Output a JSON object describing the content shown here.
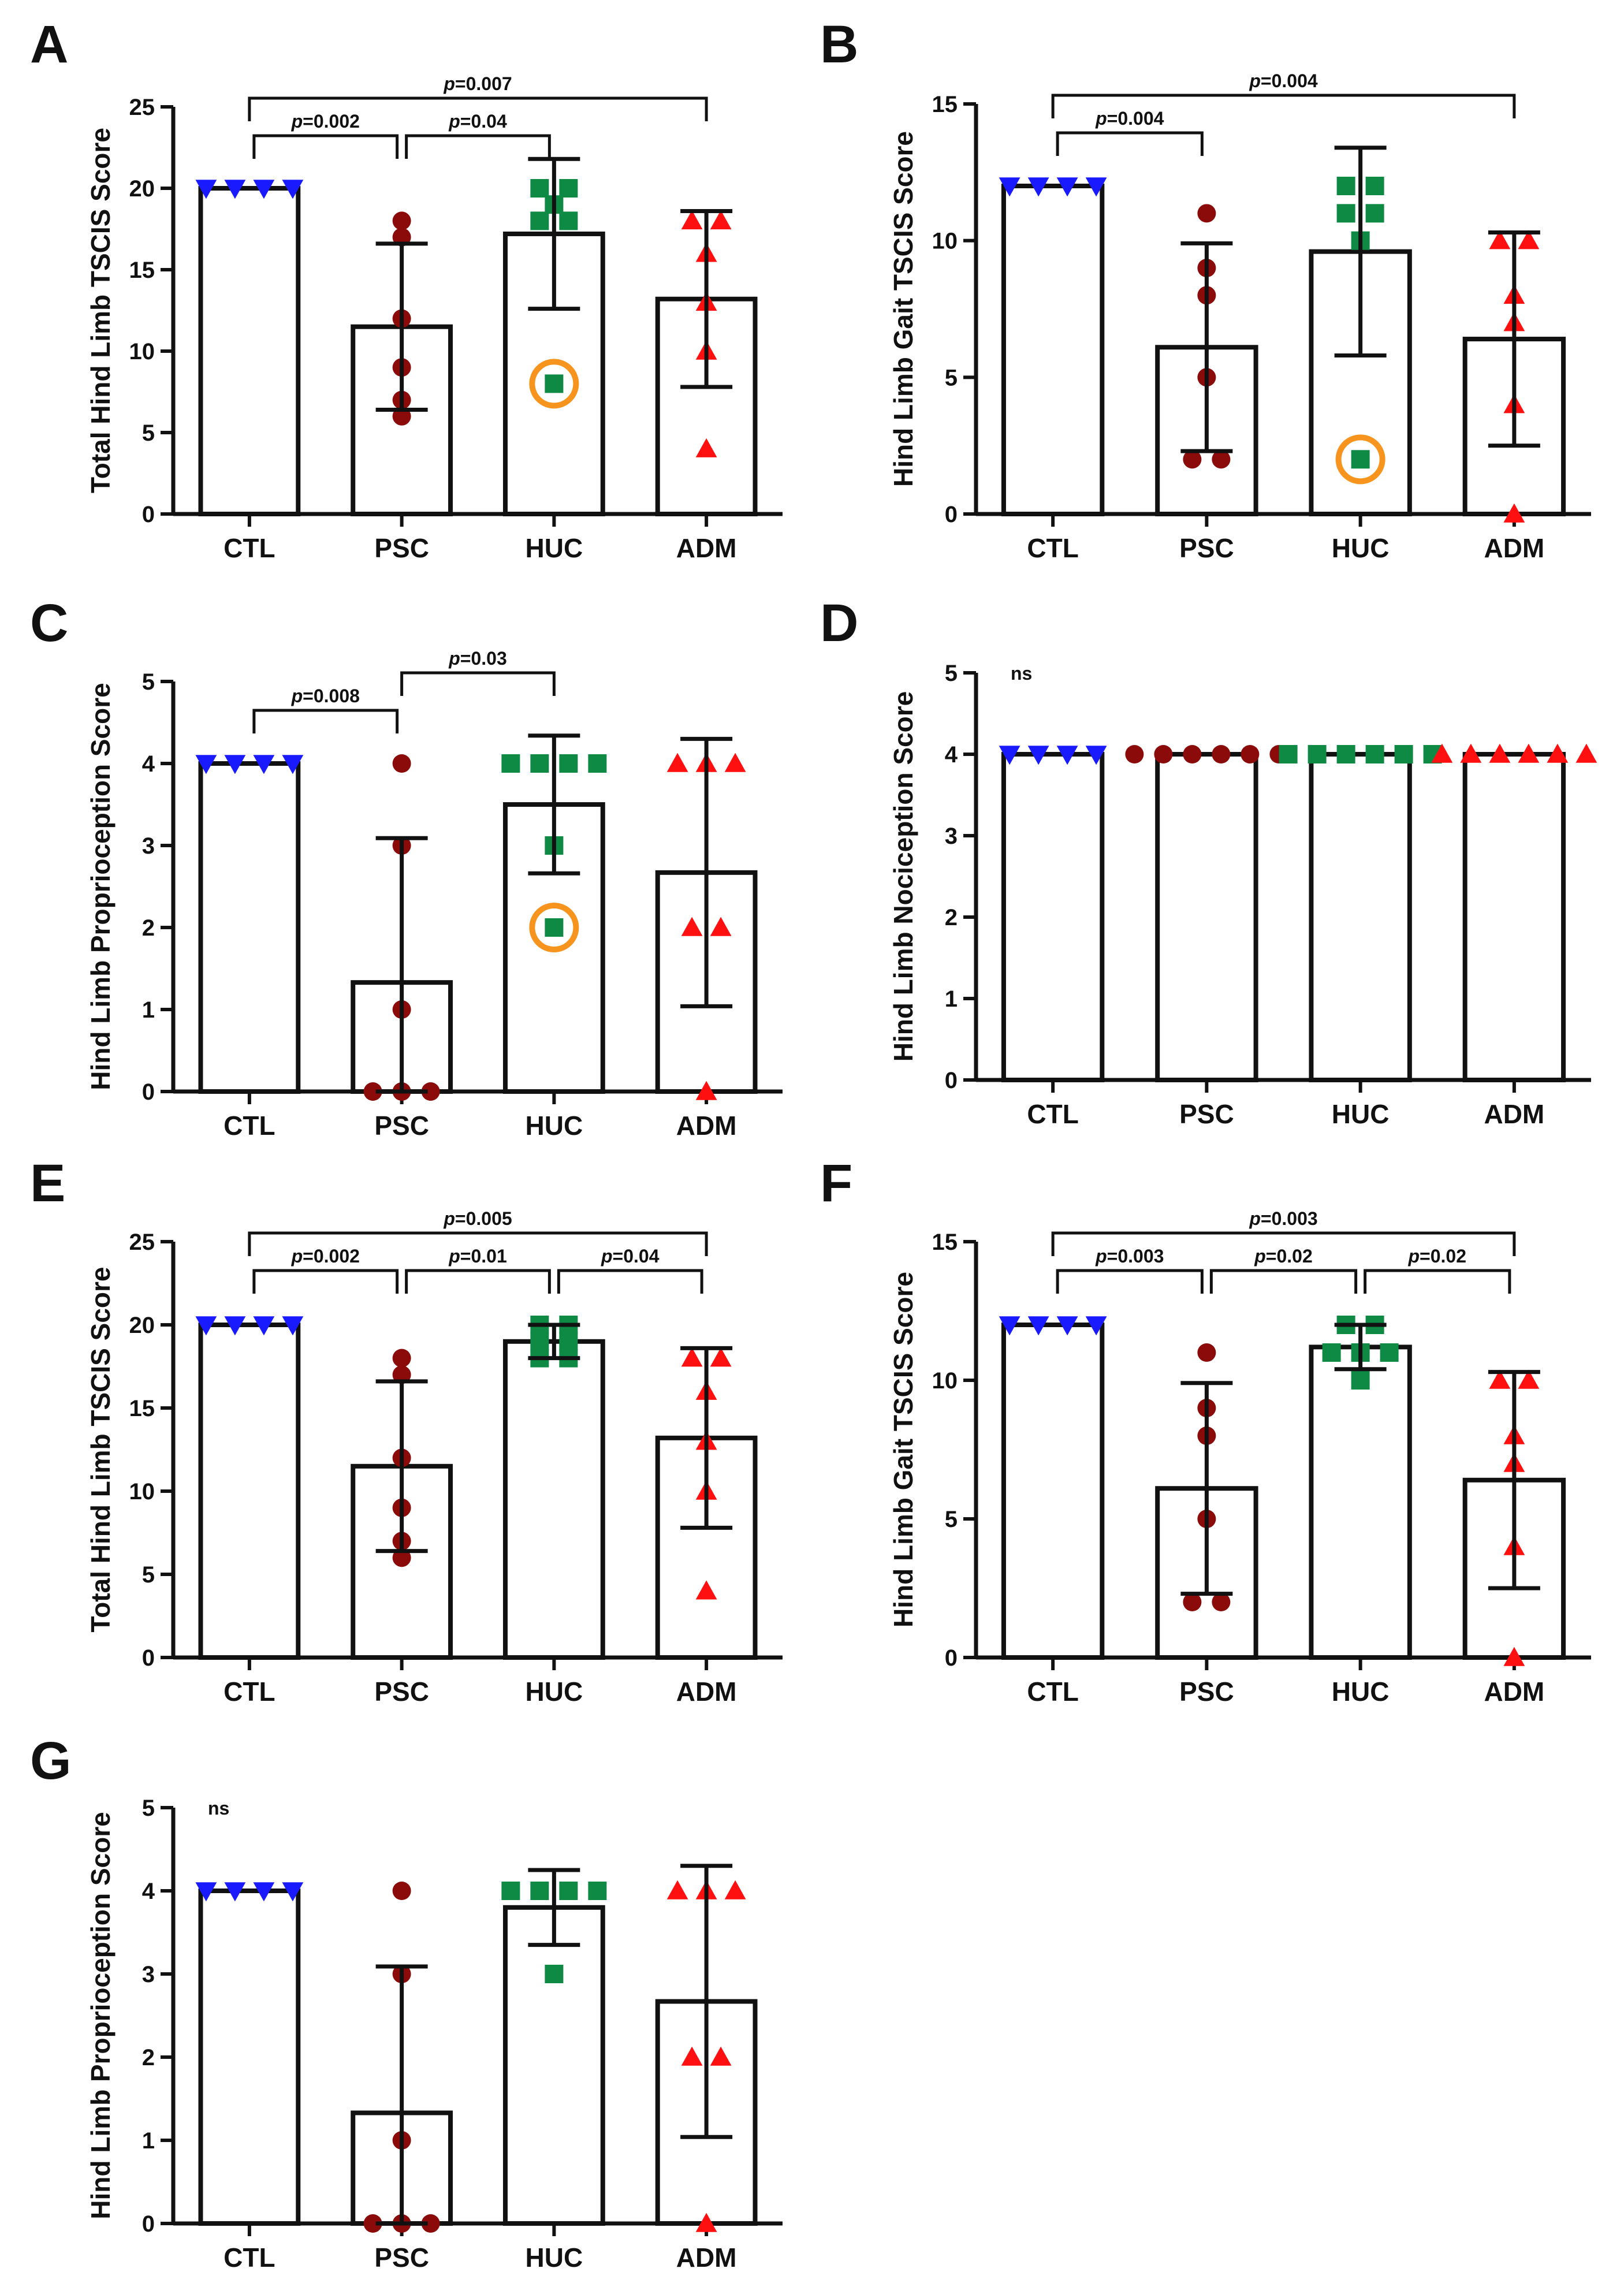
{
  "colors": {
    "CTL": "#1a1aff",
    "PSC": "#8b0a0a",
    "HUC": "#0f8a45",
    "ADM": "#ff1010",
    "highlight": "#f7941d",
    "axis": "#111111"
  },
  "chart_data": [
    {
      "panel": "A",
      "type": "bar",
      "ylabel": "Total Hind Limb TSCIS Score",
      "ylim": [
        0,
        25
      ],
      "yticks": [
        0,
        5,
        10,
        15,
        20,
        25
      ],
      "categories": [
        "CTL",
        "PSC",
        "HUC",
        "ADM"
      ],
      "bars": [
        {
          "name": "CTL",
          "mean": 20,
          "sd": 0,
          "points": [
            20,
            20,
            20,
            20
          ],
          "marker": "triangle-down"
        },
        {
          "name": "PSC",
          "mean": 11.5,
          "sd": 5.1,
          "points": [
            17,
            18,
            12,
            9,
            6,
            7
          ],
          "marker": "circle"
        },
        {
          "name": "HUC",
          "mean": 17.2,
          "sd": 4.6,
          "points": [
            20,
            19,
            20,
            18,
            18,
            8
          ],
          "marker": "square",
          "highlight": 8
        },
        {
          "name": "ADM",
          "mean": 13.2,
          "sd": 5.4,
          "points": [
            18,
            18,
            16,
            13,
            10,
            4
          ],
          "marker": "triangle-up"
        }
      ],
      "comparisons": [
        {
          "from": "CTL",
          "to": "PSC",
          "label": "p=0.002",
          "level": 0
        },
        {
          "from": "PSC",
          "to": "HUC",
          "label": "p=0.04",
          "level": 0
        },
        {
          "from": "CTL",
          "to": "ADM",
          "label": "p=0.007",
          "level": 1
        }
      ]
    },
    {
      "panel": "B",
      "type": "bar",
      "ylabel": "Hind Limb Gait TSCIS Score",
      "ylim": [
        0,
        15
      ],
      "yticks": [
        0,
        5,
        10,
        15
      ],
      "categories": [
        "CTL",
        "PSC",
        "HUC",
        "ADM"
      ],
      "bars": [
        {
          "name": "CTL",
          "mean": 12,
          "sd": 0,
          "points": [
            12,
            12,
            12,
            12
          ],
          "marker": "triangle-down"
        },
        {
          "name": "PSC",
          "mean": 6.1,
          "sd": 3.8,
          "points": [
            11,
            9,
            8,
            5,
            2,
            2
          ],
          "marker": "circle"
        },
        {
          "name": "HUC",
          "mean": 9.6,
          "sd": 3.8,
          "points": [
            12,
            12,
            11,
            11,
            10,
            2
          ],
          "marker": "square",
          "highlight": 2
        },
        {
          "name": "ADM",
          "mean": 6.4,
          "sd": 3.9,
          "points": [
            10,
            10,
            8,
            7,
            4,
            0
          ],
          "marker": "triangle-up"
        }
      ],
      "comparisons": [
        {
          "from": "CTL",
          "to": "PSC",
          "label": "p=0.004",
          "level": 0
        },
        {
          "from": "CTL",
          "to": "ADM",
          "label": "p=0.004",
          "level": 1
        }
      ]
    },
    {
      "panel": "C",
      "type": "bar",
      "ylabel": "Hind Limb Proprioception Score",
      "ylim": [
        0,
        5
      ],
      "yticks": [
        0,
        1,
        2,
        3,
        4,
        5
      ],
      "categories": [
        "CTL",
        "PSC",
        "HUC",
        "ADM"
      ],
      "bars": [
        {
          "name": "CTL",
          "mean": 4,
          "sd": 0,
          "points": [
            4,
            4,
            4,
            4
          ],
          "marker": "triangle-down"
        },
        {
          "name": "PSC",
          "mean": 1.33,
          "sd": 1.76,
          "points": [
            4,
            3,
            1,
            0,
            0,
            0
          ],
          "marker": "circle"
        },
        {
          "name": "HUC",
          "mean": 3.5,
          "sd": 0.84,
          "points": [
            4,
            4,
            4,
            4,
            3,
            2
          ],
          "marker": "square",
          "highlight": 2
        },
        {
          "name": "ADM",
          "mean": 2.67,
          "sd": 1.63,
          "points": [
            4,
            4,
            4,
            2,
            2,
            0
          ],
          "marker": "triangle-up"
        }
      ],
      "comparisons": [
        {
          "from": "CTL",
          "to": "PSC",
          "label": "p=0.008",
          "level": 0
        },
        {
          "from": "PSC",
          "to": "HUC",
          "label": "p=0.03",
          "level": 1
        }
      ]
    },
    {
      "panel": "D",
      "type": "bar",
      "ylabel": "Hind Limb Nociception Score",
      "ylim": [
        0,
        5
      ],
      "yticks": [
        0,
        1,
        2,
        3,
        4,
        5
      ],
      "annotation": "ns",
      "categories": [
        "CTL",
        "PSC",
        "HUC",
        "ADM"
      ],
      "bars": [
        {
          "name": "CTL",
          "mean": 4,
          "sd": 0,
          "points": [
            4,
            4,
            4,
            4
          ],
          "marker": "triangle-down"
        },
        {
          "name": "PSC",
          "mean": 4,
          "sd": 0,
          "points": [
            4,
            4,
            4,
            4,
            4,
            4
          ],
          "marker": "circle"
        },
        {
          "name": "HUC",
          "mean": 4,
          "sd": 0,
          "points": [
            4,
            4,
            4,
            4,
            4,
            4
          ],
          "marker": "square"
        },
        {
          "name": "ADM",
          "mean": 4,
          "sd": 0,
          "points": [
            4,
            4,
            4,
            4,
            4,
            4
          ],
          "marker": "triangle-up"
        }
      ],
      "comparisons": []
    },
    {
      "panel": "E",
      "type": "bar",
      "ylabel": "Total Hind Limb TSCIS Score",
      "ylim": [
        0,
        25
      ],
      "yticks": [
        0,
        5,
        10,
        15,
        20,
        25
      ],
      "categories": [
        "CTL",
        "PSC",
        "HUC",
        "ADM"
      ],
      "bars": [
        {
          "name": "CTL",
          "mean": 20,
          "sd": 0,
          "points": [
            20,
            20,
            20,
            20
          ],
          "marker": "triangle-down"
        },
        {
          "name": "PSC",
          "mean": 11.5,
          "sd": 5.1,
          "points": [
            17,
            18,
            12,
            9,
            6,
            7
          ],
          "marker": "circle"
        },
        {
          "name": "HUC",
          "mean": 19,
          "sd": 1,
          "points": [
            20,
            20,
            19,
            19,
            18,
            18
          ],
          "marker": "square"
        },
        {
          "name": "ADM",
          "mean": 13.2,
          "sd": 5.4,
          "points": [
            18,
            18,
            16,
            13,
            10,
            4
          ],
          "marker": "triangle-up"
        }
      ],
      "comparisons": [
        {
          "from": "CTL",
          "to": "PSC",
          "label": "p=0.002",
          "level": 0
        },
        {
          "from": "PSC",
          "to": "HUC",
          "label": "p=0.01",
          "level": 0
        },
        {
          "from": "HUC",
          "to": "ADM",
          "label": "p=0.04",
          "level": 0
        },
        {
          "from": "CTL",
          "to": "ADM",
          "label": "p=0.005",
          "level": 1
        }
      ]
    },
    {
      "panel": "F",
      "type": "bar",
      "ylabel": "Hind Limb Gait TSCIS Score",
      "ylim": [
        0,
        15
      ],
      "yticks": [
        0,
        5,
        10,
        15
      ],
      "categories": [
        "CTL",
        "PSC",
        "HUC",
        "ADM"
      ],
      "bars": [
        {
          "name": "CTL",
          "mean": 12,
          "sd": 0,
          "points": [
            12,
            12,
            12,
            12
          ],
          "marker": "triangle-down"
        },
        {
          "name": "PSC",
          "mean": 6.1,
          "sd": 3.8,
          "points": [
            11,
            9,
            8,
            5,
            2,
            2
          ],
          "marker": "circle"
        },
        {
          "name": "HUC",
          "mean": 11.2,
          "sd": 0.8,
          "points": [
            12,
            12,
            11,
            11,
            11,
            10
          ],
          "marker": "square"
        },
        {
          "name": "ADM",
          "mean": 6.4,
          "sd": 3.9,
          "points": [
            10,
            10,
            8,
            7,
            4,
            0
          ],
          "marker": "triangle-up"
        }
      ],
      "comparisons": [
        {
          "from": "CTL",
          "to": "PSC",
          "label": "p=0.003",
          "level": 0
        },
        {
          "from": "PSC",
          "to": "HUC",
          "label": "p=0.02",
          "level": 0
        },
        {
          "from": "HUC",
          "to": "ADM",
          "label": "p=0.02",
          "level": 0
        },
        {
          "from": "CTL",
          "to": "ADM",
          "label": "p=0.003",
          "level": 1
        }
      ]
    },
    {
      "panel": "G",
      "type": "bar",
      "ylabel": "Hind Limb Proprioception Score",
      "ylim": [
        0,
        5
      ],
      "yticks": [
        0,
        1,
        2,
        3,
        4,
        5
      ],
      "annotation": "ns",
      "categories": [
        "CTL",
        "PSC",
        "HUC",
        "ADM"
      ],
      "bars": [
        {
          "name": "CTL",
          "mean": 4,
          "sd": 0,
          "points": [
            4,
            4,
            4,
            4
          ],
          "marker": "triangle-down"
        },
        {
          "name": "PSC",
          "mean": 1.33,
          "sd": 1.76,
          "points": [
            4,
            3,
            1,
            0,
            0,
            0
          ],
          "marker": "circle"
        },
        {
          "name": "HUC",
          "mean": 3.8,
          "sd": 0.45,
          "points": [
            4,
            4,
            4,
            4,
            3
          ],
          "marker": "square"
        },
        {
          "name": "ADM",
          "mean": 2.67,
          "sd": 1.63,
          "points": [
            4,
            4,
            4,
            2,
            2,
            0
          ],
          "marker": "triangle-up"
        }
      ],
      "comparisons": []
    }
  ]
}
